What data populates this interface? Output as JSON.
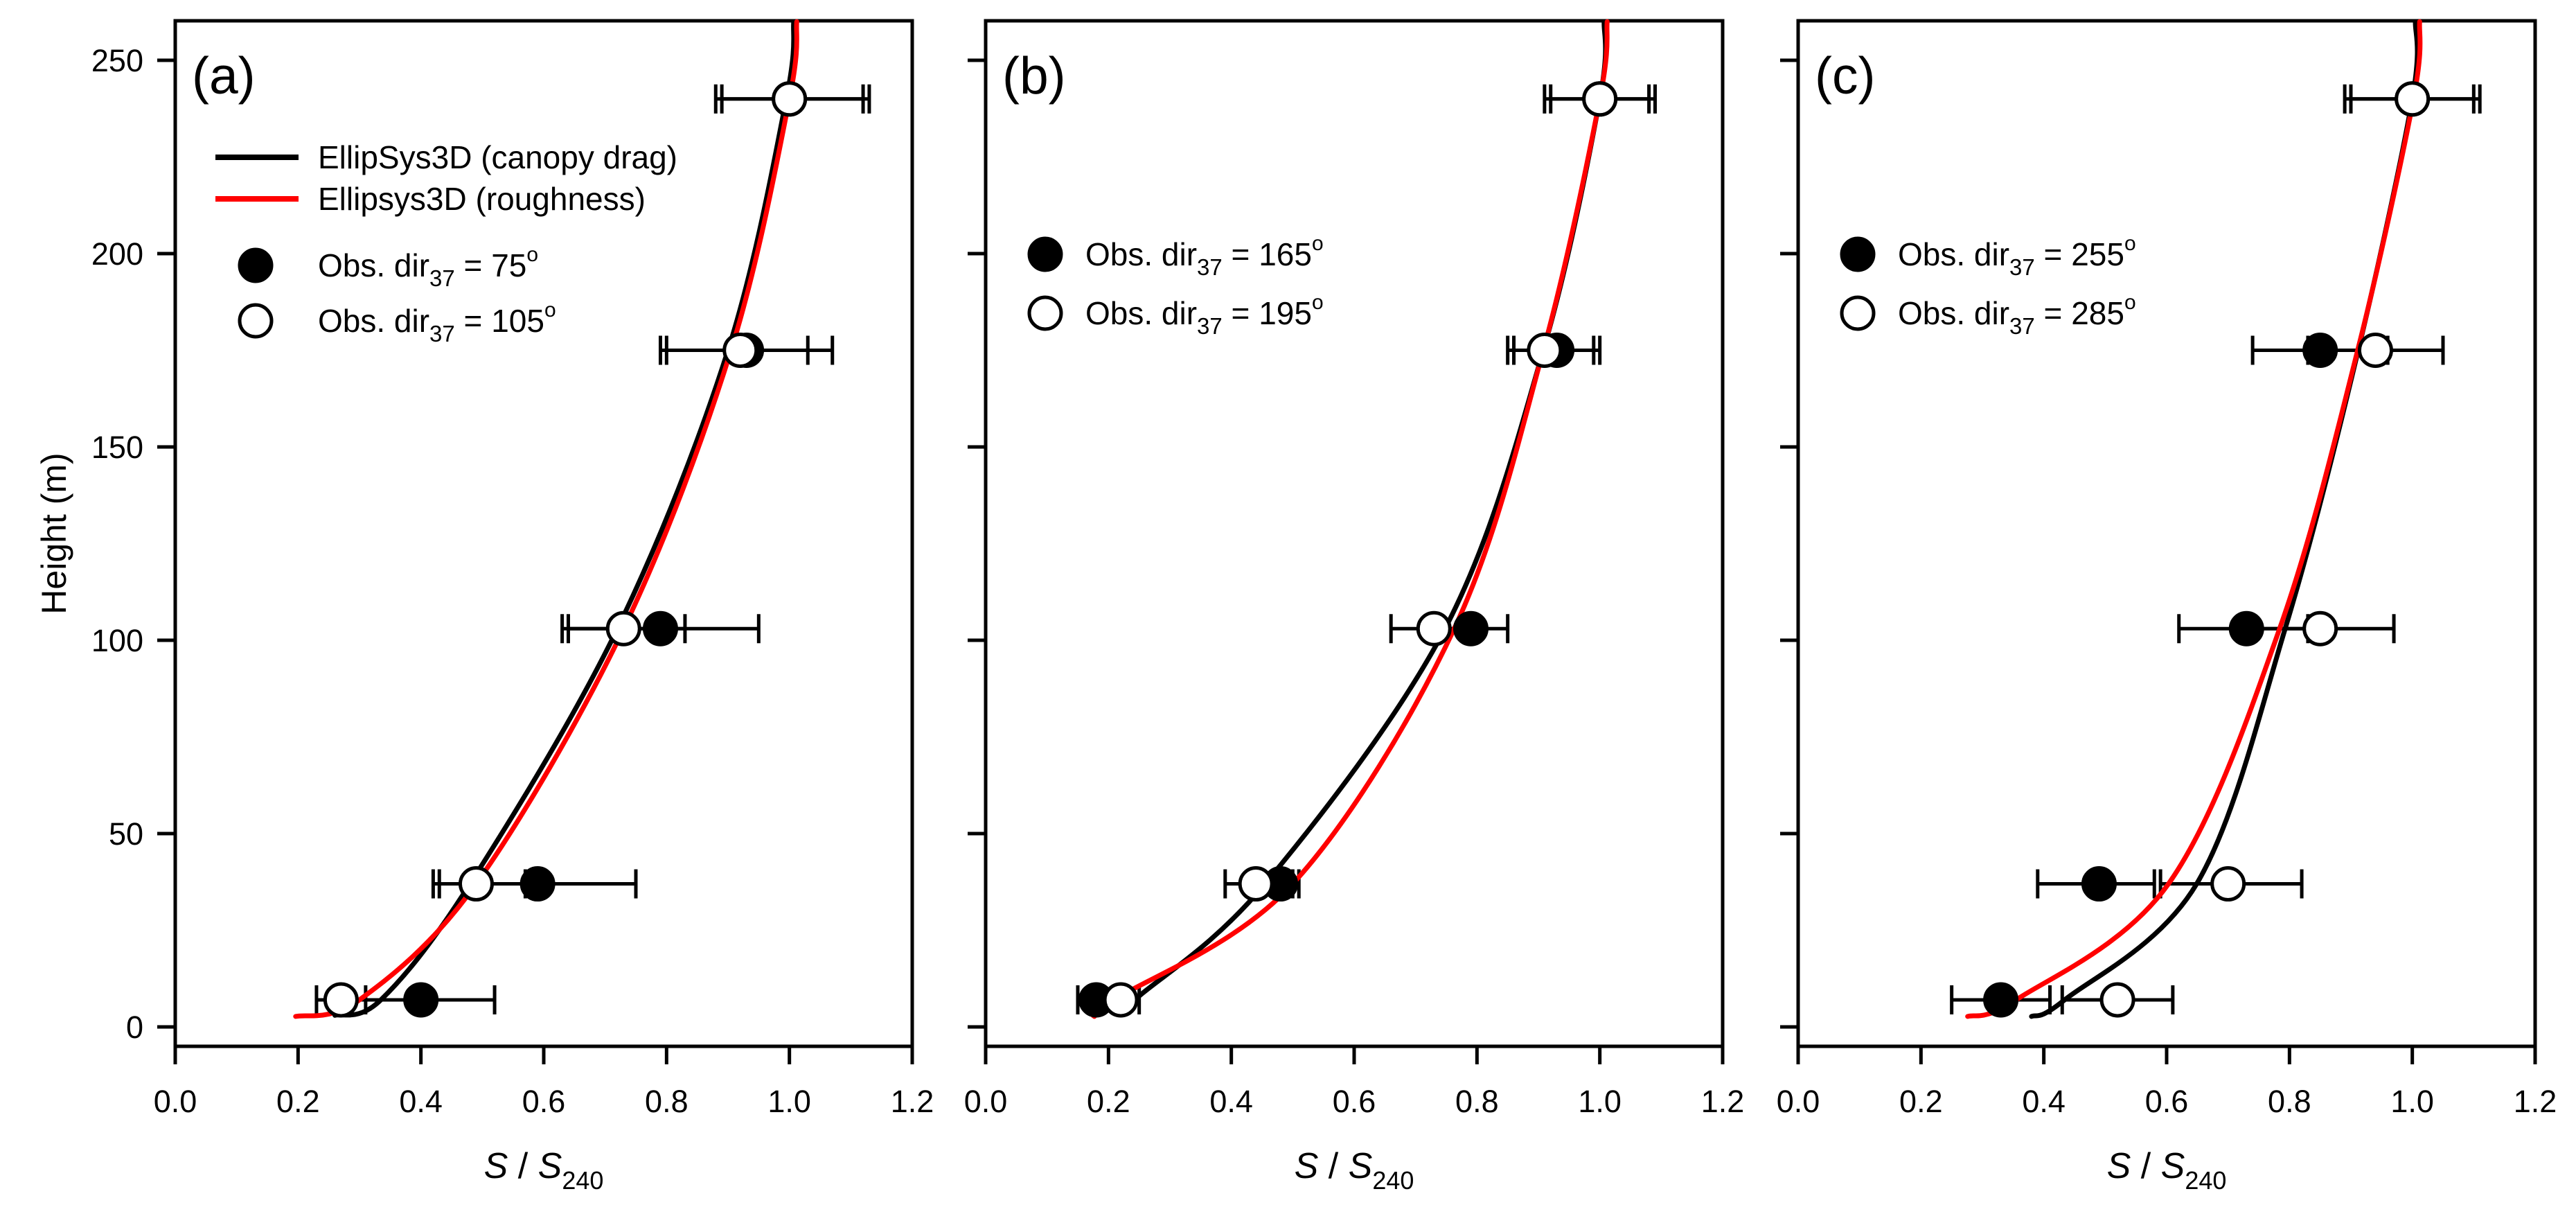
{
  "figure": {
    "background": "#ffffff",
    "ylabel": "Height (m)",
    "xlabel": {
      "base1": "S",
      "sep": " / ",
      "base2": "S",
      "sub": "240"
    },
    "colors": {
      "canopy_drag": "#000000",
      "roughness": "#ff0000",
      "axis": "#000000"
    },
    "legend_lines": [
      {
        "label": "EllipSys3D (canopy drag)",
        "color": "#000000"
      },
      {
        "label": "Ellipsys3D (roughness)",
        "color": "#ff0000"
      }
    ]
  },
  "chart_data": [
    {
      "type": "scatter",
      "panel_label": "(a)",
      "xlabel": "S / S240",
      "ylabel": "Height (m)",
      "xlim": [
        0,
        1.2
      ],
      "ylim": [
        -5,
        260
      ],
      "x_ticks": [
        0.0,
        0.2,
        0.4,
        0.6,
        0.8,
        1.0,
        1.2
      ],
      "y_ticks": [
        0,
        50,
        100,
        150,
        200,
        250
      ],
      "show_line_legend": true,
      "show_y_tick_labels": true,
      "heights_m": [
        7,
        37,
        103,
        175,
        240
      ],
      "series": [
        {
          "legend": {
            "pre": "Obs. dir",
            "sub": "37",
            "mid": " = 75",
            "sup": "o"
          },
          "marker": "filled",
          "values": [
            0.4,
            0.59,
            0.79,
            0.93,
            1.0
          ],
          "err_lo": [
            0.28,
            0.43,
            0.64,
            0.79,
            0.89
          ],
          "err_hi": [
            0.52,
            0.75,
            0.95,
            1.07,
            1.12
          ]
        },
        {
          "legend": {
            "pre": "Obs. dir",
            "sub": "37",
            "mid": " = 105",
            "sup": "o"
          },
          "marker": "open",
          "values": [
            0.27,
            0.49,
            0.73,
            0.92,
            1.0
          ],
          "err_lo": [
            0.23,
            0.42,
            0.63,
            0.8,
            0.88
          ],
          "err_hi": [
            0.31,
            0.57,
            0.83,
            1.03,
            1.13
          ]
        }
      ],
      "curves": [
        {
          "name": "EllipSys3D (canopy drag)",
          "color": "#000000",
          "points": [
            [
              0.26,
              3
            ],
            [
              0.335,
              7
            ],
            [
              0.48,
              37
            ],
            [
              0.72,
              103
            ],
            [
              0.9,
              175
            ],
            [
              0.995,
              240
            ],
            [
              1.007,
              260
            ]
          ]
        },
        {
          "name": "Ellipsys3D (roughness)",
          "color": "#ff0000",
          "points": [
            [
              0.196,
              2.7
            ],
            [
              0.3,
              7
            ],
            [
              0.49,
              37
            ],
            [
              0.73,
              103
            ],
            [
              0.905,
              175
            ],
            [
              1.0,
              240
            ],
            [
              1.012,
              260
            ]
          ]
        }
      ]
    },
    {
      "type": "scatter",
      "panel_label": "(b)",
      "xlabel": "S / S240",
      "ylabel": "Height (m)",
      "xlim": [
        0,
        1.2
      ],
      "ylim": [
        -5,
        260
      ],
      "x_ticks": [
        0.0,
        0.2,
        0.4,
        0.6,
        0.8,
        1.0,
        1.2
      ],
      "y_ticks": [
        0,
        50,
        100,
        150,
        200,
        250
      ],
      "show_line_legend": false,
      "show_y_tick_labels": false,
      "heights_m": [
        7,
        37,
        103,
        175,
        240
      ],
      "series": [
        {
          "legend": {
            "pre": "Obs. dir",
            "sub": "37",
            "mid": " = 165",
            "sup": "o"
          },
          "marker": "filled",
          "values": [
            0.18,
            0.48,
            0.79,
            0.93,
            1.0
          ],
          "err_lo": [
            0.15,
            0.44,
            0.73,
            0.86,
            0.92
          ],
          "err_hi": [
            0.22,
            0.51,
            0.85,
            1.0,
            1.08
          ]
        },
        {
          "legend": {
            "pre": "Obs. dir",
            "sub": "37",
            "mid": " = 195",
            "sup": "o"
          },
          "marker": "open",
          "values": [
            0.22,
            0.44,
            0.73,
            0.91,
            1.0
          ],
          "err_lo": [
            0.18,
            0.39,
            0.66,
            0.85,
            0.91
          ],
          "err_hi": [
            0.25,
            0.5,
            0.79,
            0.99,
            1.09
          ]
        }
      ],
      "curves": [
        {
          "name": "EllipSys3D (canopy drag)",
          "color": "#000000",
          "points": [
            [
              0.215,
              4
            ],
            [
              0.25,
              8
            ],
            [
              0.455,
              37
            ],
            [
              0.748,
              103
            ],
            [
              0.908,
              175
            ],
            [
              1.0,
              240
            ],
            [
              1.007,
              260
            ]
          ]
        },
        {
          "name": "Ellipsys3D (roughness)",
          "color": "#ff0000",
          "points": [
            [
              0.177,
              2.7
            ],
            [
              0.21,
              7
            ],
            [
              0.5,
              37
            ],
            [
              0.763,
              103
            ],
            [
              0.908,
              175
            ],
            [
              1.0,
              240
            ],
            [
              1.012,
              260
            ]
          ]
        }
      ]
    },
    {
      "type": "scatter",
      "panel_label": "(c)",
      "xlabel": "S / S240",
      "ylabel": "Height (m)",
      "xlim": [
        0,
        1.2
      ],
      "ylim": [
        -5,
        260
      ],
      "x_ticks": [
        0.0,
        0.2,
        0.4,
        0.6,
        0.8,
        1.0,
        1.2
      ],
      "y_ticks": [
        0,
        50,
        100,
        150,
        200,
        250
      ],
      "show_line_legend": false,
      "show_y_tick_labels": false,
      "heights_m": [
        7,
        37,
        103,
        175,
        240
      ],
      "series": [
        {
          "legend": {
            "pre": "Obs. dir",
            "sub": "37",
            "mid": " = 255",
            "sup": "o"
          },
          "marker": "filled",
          "values": [
            0.33,
            0.49,
            0.73,
            0.85,
            1.0
          ],
          "err_lo": [
            0.25,
            0.39,
            0.62,
            0.74,
            0.89
          ],
          "err_hi": [
            0.41,
            0.58,
            0.83,
            0.96,
            1.1
          ]
        },
        {
          "legend": {
            "pre": "Obs. dir",
            "sub": "37",
            "mid": " = 285",
            "sup": "o"
          },
          "marker": "open",
          "values": [
            0.52,
            0.7,
            0.85,
            0.94,
            1.0
          ],
          "err_lo": [
            0.43,
            0.59,
            0.72,
            0.83,
            0.9
          ],
          "err_hi": [
            0.61,
            0.82,
            0.97,
            1.05,
            1.11
          ]
        }
      ],
      "curves": [
        {
          "name": "EllipSys3D (canopy drag)",
          "color": "#000000",
          "points": [
            [
              0.38,
              2.7
            ],
            [
              0.434,
              7
            ],
            [
              0.649,
              37
            ],
            [
              0.793,
              103
            ],
            [
              0.912,
              175
            ],
            [
              1.0,
              240
            ],
            [
              1.005,
              260
            ]
          ]
        },
        {
          "name": "Ellipsys3D (roughness)",
          "color": "#ff0000",
          "points": [
            [
              0.276,
              2.7
            ],
            [
              0.355,
              7
            ],
            [
              0.603,
              37
            ],
            [
              0.784,
              103
            ],
            [
              0.911,
              175
            ],
            [
              1.002,
              240
            ],
            [
              1.012,
              260
            ]
          ]
        }
      ]
    }
  ]
}
